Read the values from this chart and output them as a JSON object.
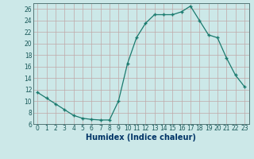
{
  "x": [
    0,
    1,
    2,
    3,
    4,
    5,
    6,
    7,
    8,
    9,
    10,
    11,
    12,
    13,
    14,
    15,
    16,
    17,
    18,
    19,
    20,
    21,
    22,
    23
  ],
  "y": [
    11.5,
    10.5,
    9.5,
    8.5,
    7.5,
    7.0,
    6.8,
    6.7,
    6.7,
    10.0,
    16.5,
    21.0,
    23.5,
    25.0,
    25.0,
    25.0,
    25.5,
    26.5,
    24.0,
    21.5,
    21.0,
    17.5,
    14.5,
    12.5
  ],
  "line_color": "#1a7a6e",
  "marker": "+",
  "marker_size": 3.5,
  "marker_linewidth": 1.0,
  "linewidth": 0.9,
  "bg_color": "#cce8e8",
  "grid_color": "#c0a8a8",
  "xlabel": "Humidex (Indice chaleur)",
  "xlim": [
    -0.5,
    23.5
  ],
  "ylim": [
    6,
    27
  ],
  "yticks": [
    6,
    8,
    10,
    12,
    14,
    16,
    18,
    20,
    22,
    24,
    26
  ],
  "xticks": [
    0,
    1,
    2,
    3,
    4,
    5,
    6,
    7,
    8,
    9,
    10,
    11,
    12,
    13,
    14,
    15,
    16,
    17,
    18,
    19,
    20,
    21,
    22,
    23
  ],
  "tick_label_fontsize": 5.5,
  "xlabel_fontsize": 7.0,
  "xlabel_color": "#003366",
  "tick_color": "#1a5a5a"
}
